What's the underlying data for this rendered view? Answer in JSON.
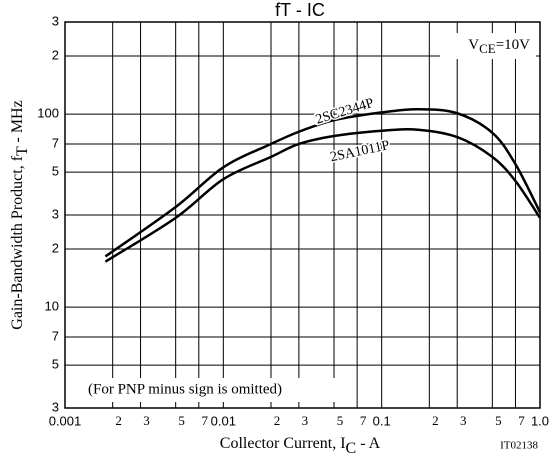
{
  "chart_data": {
    "type": "line",
    "title": "fT - IC",
    "annotation": {
      "main": "V",
      "sub": "CE",
      "rest": "=10V"
    },
    "note": "(For PNP minus sign is omitted)",
    "code": "IT02138",
    "xlabel": {
      "main": "Collector Current,  I",
      "sub": "C",
      "rest": " - A"
    },
    "ylabel": {
      "main": "Gain-Bandwidth Product,  f",
      "sub": "T",
      "rest": " - MHz"
    },
    "log_x": true,
    "log_y": true,
    "grid": true,
    "xlim": [
      0.001,
      1.0
    ],
    "xticks": [
      0.001,
      {
        "value": 0.002,
        "label": "2"
      },
      {
        "value": 0.003,
        "label": "3"
      },
      {
        "value": 0.005,
        "label": "5"
      },
      {
        "value": 0.007,
        "label": "7"
      },
      0.01,
      {
        "value": 0.02,
        "label": "2"
      },
      {
        "value": 0.03,
        "label": "3"
      },
      {
        "value": 0.05,
        "label": "5"
      },
      {
        "value": 0.07,
        "label": "7"
      },
      0.1,
      {
        "value": 0.2,
        "label": "2"
      },
      {
        "value": 0.3,
        "label": "3"
      },
      {
        "value": 0.5,
        "label": "5"
      },
      {
        "value": 0.7,
        "label": "7"
      },
      {
        "value": 1.0,
        "label": "1.0"
      }
    ],
    "ylim": [
      3,
      300
    ],
    "yticks": [
      3,
      5,
      7,
      10,
      {
        "value": 20,
        "label": "2"
      },
      {
        "value": 30,
        "label": "3"
      },
      {
        "value": 50,
        "label": "5"
      },
      {
        "value": 70,
        "label": "7"
      },
      100,
      {
        "value": 200,
        "label": "2"
      },
      {
        "value": 300,
        "label": "3"
      }
    ],
    "x": [
      0.0018,
      0.005,
      0.01,
      0.02,
      0.03,
      0.05,
      0.1,
      0.17,
      0.3,
      0.5,
      0.7,
      1.0
    ],
    "series": [
      {
        "name": "2SC2344P",
        "color": "#000000",
        "values": [
          18.3,
          33,
          53,
          70,
          81,
          93,
          102,
          106,
          101,
          80,
          55,
          31
        ]
      },
      {
        "name": "2SA1011P",
        "color": "#000000",
        "values": [
          17.2,
          29,
          46,
          60,
          70,
          77,
          82,
          83,
          76,
          60,
          45,
          29
        ]
      }
    ]
  }
}
